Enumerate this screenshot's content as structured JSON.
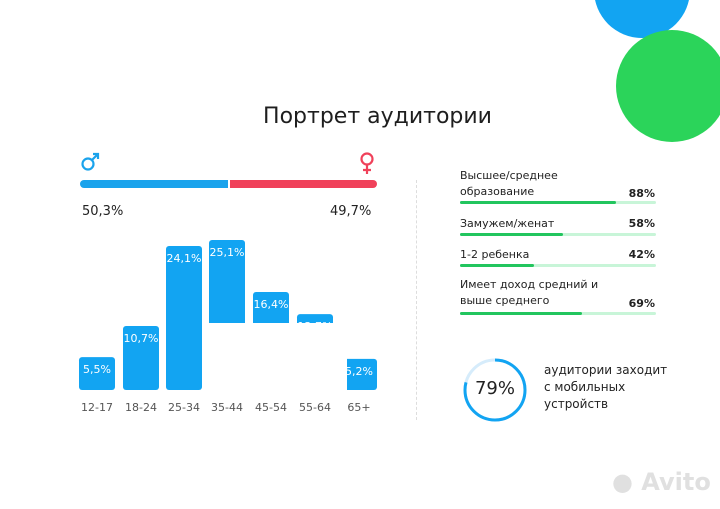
{
  "title": "Портрет аудитории",
  "colors": {
    "male": "#1aa3ec",
    "female": "#f0415a",
    "bar": "#12a4f2",
    "green": "#22c55e",
    "blue_circle": "#12a4f2",
    "green_circle": "#2bd45a"
  },
  "gender": {
    "male_icon": "male-symbol-icon",
    "female_icon": "female-symbol-icon",
    "male_pct": "50,3%",
    "female_pct": "49,7%",
    "male_value": 50.3,
    "female_value": 49.7
  },
  "chart_data": {
    "type": "bar",
    "categories": [
      "12-17",
      "18-24",
      "25-34",
      "35-44",
      "45-54",
      "55-64",
      "65+"
    ],
    "values": [
      5.5,
      10.7,
      24.1,
      25.1,
      16.4,
      12.7,
      5.2
    ],
    "labels": [
      "5,5%",
      "10,7%",
      "24,1%",
      "25,1%",
      "16,4%",
      "12,7%",
      "5,2%"
    ],
    "ylim": [
      0,
      25.1
    ],
    "grid": false
  },
  "stats": [
    {
      "label": "Высшее/среднее образование",
      "value": "88%",
      "fraction": 0.88
    },
    {
      "label": "Замужем/женат",
      "value": "58%",
      "fraction": 0.58
    },
    {
      "label": "1-2 ребенка",
      "value": "42%",
      "fraction": 0.42
    },
    {
      "label": "Имеет доход средний и выше среднего",
      "value": "69%",
      "fraction": 0.69
    }
  ],
  "mobile": {
    "value": "79%",
    "fraction": 0.79,
    "text": "аудитории заходит с мобильных устройств"
  },
  "watermark": "Avito"
}
